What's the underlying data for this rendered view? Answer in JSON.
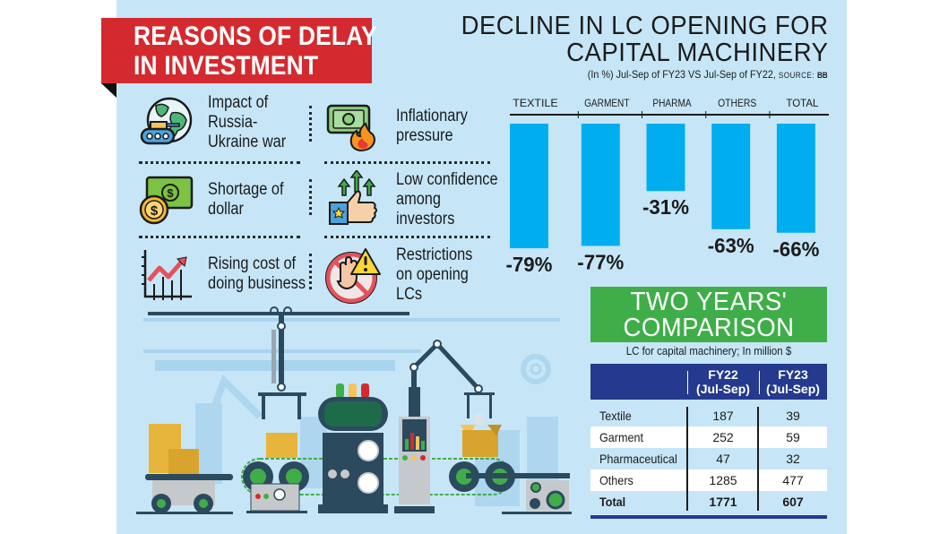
{
  "banner": {
    "title_line1": "REASONS OF DELAY",
    "title_line2": "IN INVESTMENT",
    "color": "#d42a2f"
  },
  "reasons": [
    {
      "icon": "globe-tank-icon",
      "label_lines": [
        "Impact of",
        "Russia-",
        "Ukraine war"
      ]
    },
    {
      "icon": "money-fire-icon",
      "label_lines": [
        "Inflationary",
        "pressure"
      ]
    },
    {
      "icon": "dollar-bill-coin-icon",
      "label_lines": [
        "Shortage of",
        "dollar"
      ]
    },
    {
      "icon": "thumbs-up-arrows-icon",
      "label_lines": [
        "Low confidence",
        "among",
        "investors"
      ]
    },
    {
      "icon": "rising-chart-icon",
      "label_lines": [
        "Rising cost of",
        "doing business"
      ]
    },
    {
      "icon": "stop-hand-warning-icon",
      "label_lines": [
        "Restrictions",
        "on opening",
        "LCs"
      ]
    }
  ],
  "chart_data": {
    "type": "bar",
    "title": "DECLINE IN LC OPENING FOR CAPITAL MACHINERY",
    "title_line1": "DECLINE IN LC OPENING FOR",
    "title_line2": "CAPITAL MACHINERY",
    "subtitle": "(In %) Jul-Sep of FY23 VS Jul-Sep of FY22,",
    "source_label": "SOURCE:",
    "source": "BB",
    "categories": [
      "TEXTILE",
      "GARMENT",
      "PHARMA",
      "OTHERS",
      "TOTAL"
    ],
    "values": [
      -79,
      -77,
      -31,
      -63,
      -66
    ],
    "data_labels": [
      "-79%",
      "-77%",
      "-31%",
      "-63%",
      "-66%"
    ],
    "xlabel": "",
    "ylabel": "",
    "bar_color": "#00aeef",
    "grid": false,
    "orientation": "bars hang downward from top axis"
  },
  "comparison": {
    "title_line1": "TWO YEARS'",
    "title_line2": "COMPARISON",
    "subtitle": "LC for capital machinery; In million $",
    "header_color": "#243a8f",
    "title_color": "#3fae49",
    "columns": [
      {
        "line1": "FY22",
        "line2": "(Jul-Sep)"
      },
      {
        "line1": "FY23",
        "line2": "(Jul-Sep)"
      }
    ],
    "rows": [
      {
        "name": "Textile",
        "fy22": "187",
        "fy23": "39"
      },
      {
        "name": "Garment",
        "fy22": "252",
        "fy23": "59"
      },
      {
        "name": "Pharmaceutical",
        "fy22": "47",
        "fy23": "32"
      },
      {
        "name": "Others",
        "fy22": "1285",
        "fy23": "477"
      },
      {
        "name": "Total",
        "fy22": "1771",
        "fy23": "607"
      }
    ]
  },
  "illustration": {
    "icon": "factory-assembly-line-icon"
  }
}
